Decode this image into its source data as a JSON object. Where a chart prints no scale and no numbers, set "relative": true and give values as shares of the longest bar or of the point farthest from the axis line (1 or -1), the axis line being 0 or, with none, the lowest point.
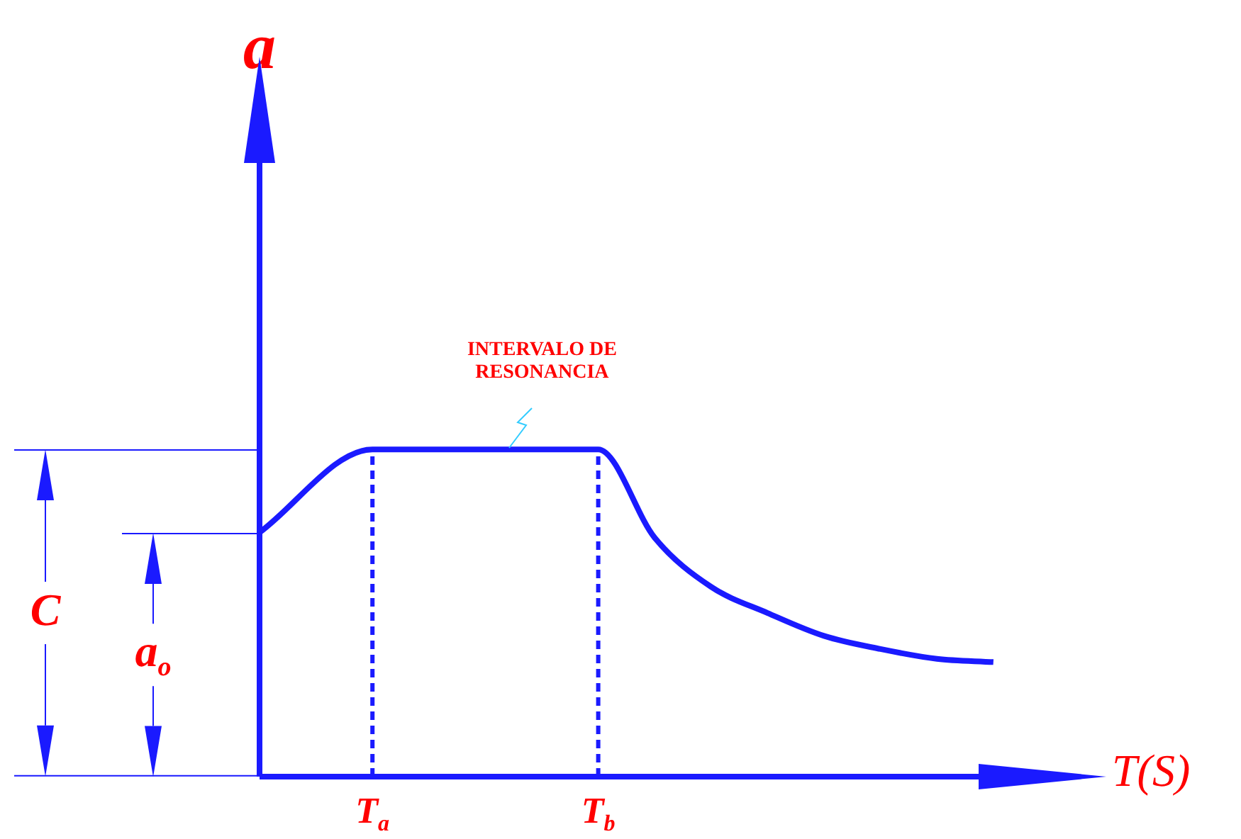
{
  "chart_data": {
    "type": "line",
    "relative": true,
    "xlabel": "T(S)",
    "categories": [
      null,
      null,
      "T$_{a}$",
      null,
      null,
      null,
      "T$_{b}$",
      null,
      null,
      null,
      null,
      null,
      null,
      null,
      null,
      null
    ],
    "series": [
      {
        "color": "#1a1aff",
        "values": [
          0.746,
          null,
          1,
          null,
          null,
          null,
          1,
          0.73,
          0.58,
          0.5,
          0.43,
          0.39,
          0.36,
          0.35,
          null,
          null
        ]
      }
    ],
    "grid": false,
    "legend": false,
    "marker": "none",
    "line_style": "solid",
    "ref_lines": [
      {
        "axis": "x",
        "value": "T$_{a}$",
        "line_style": "dashed",
        "color": "#1a1aff"
      },
      {
        "axis": "x",
        "value": "T$_{b}$",
        "line_style": "dashed",
        "color": "#1a1aff"
      }
    ],
    "annotations": [
      "a",
      "C",
      "a$_{o}$",
      "INTERVALO DE RESONANCIA"
    ]
  }
}
